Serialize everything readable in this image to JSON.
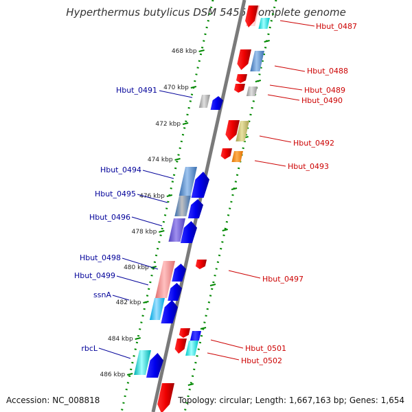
{
  "title": "Hyperthermus butylicus DSM 5456, complete genome",
  "footer": {
    "accession": "Accession: NC_008818",
    "topology": "Topology: circular; Length: 1,667,163 bp; Genes: 1,654"
  },
  "scale": {
    "unit": "kbp",
    "ticks": [
      "468 kbp",
      "470 kbp",
      "472 kbp",
      "474 kbp",
      "476 kbp",
      "478 kbp",
      "480 kbp",
      "482 kbp",
      "484 kbp",
      "486 kbp"
    ]
  },
  "colors": {
    "backbone": "#777777",
    "reverse_label": "#cc0000",
    "forward_label": "#000099",
    "forward_arrow": "#0000ee",
    "reverse_arrow": "#ee0000",
    "tick": "#008800"
  },
  "genes": [
    {
      "name": "Hbut_0487",
      "strand": "reverse"
    },
    {
      "name": "Hbut_0488",
      "strand": "reverse"
    },
    {
      "name": "Hbut_0489",
      "strand": "reverse"
    },
    {
      "name": "Hbut_0490",
      "strand": "reverse"
    },
    {
      "name": "Hbut_0491",
      "strand": "forward"
    },
    {
      "name": "Hbut_0492",
      "strand": "reverse"
    },
    {
      "name": "Hbut_0493",
      "strand": "reverse"
    },
    {
      "name": "Hbut_0494",
      "strand": "forward"
    },
    {
      "name": "Hbut_0495",
      "strand": "forward"
    },
    {
      "name": "Hbut_0496",
      "strand": "forward"
    },
    {
      "name": "Hbut_0497",
      "strand": "reverse"
    },
    {
      "name": "Hbut_0498",
      "strand": "forward"
    },
    {
      "name": "Hbut_0499",
      "strand": "forward"
    },
    {
      "name": "ssnA",
      "strand": "forward"
    },
    {
      "name": "Hbut_0501",
      "strand": "reverse"
    },
    {
      "name": "Hbut_0502",
      "strand": "reverse"
    },
    {
      "name": "rbcL",
      "strand": "forward"
    }
  ]
}
